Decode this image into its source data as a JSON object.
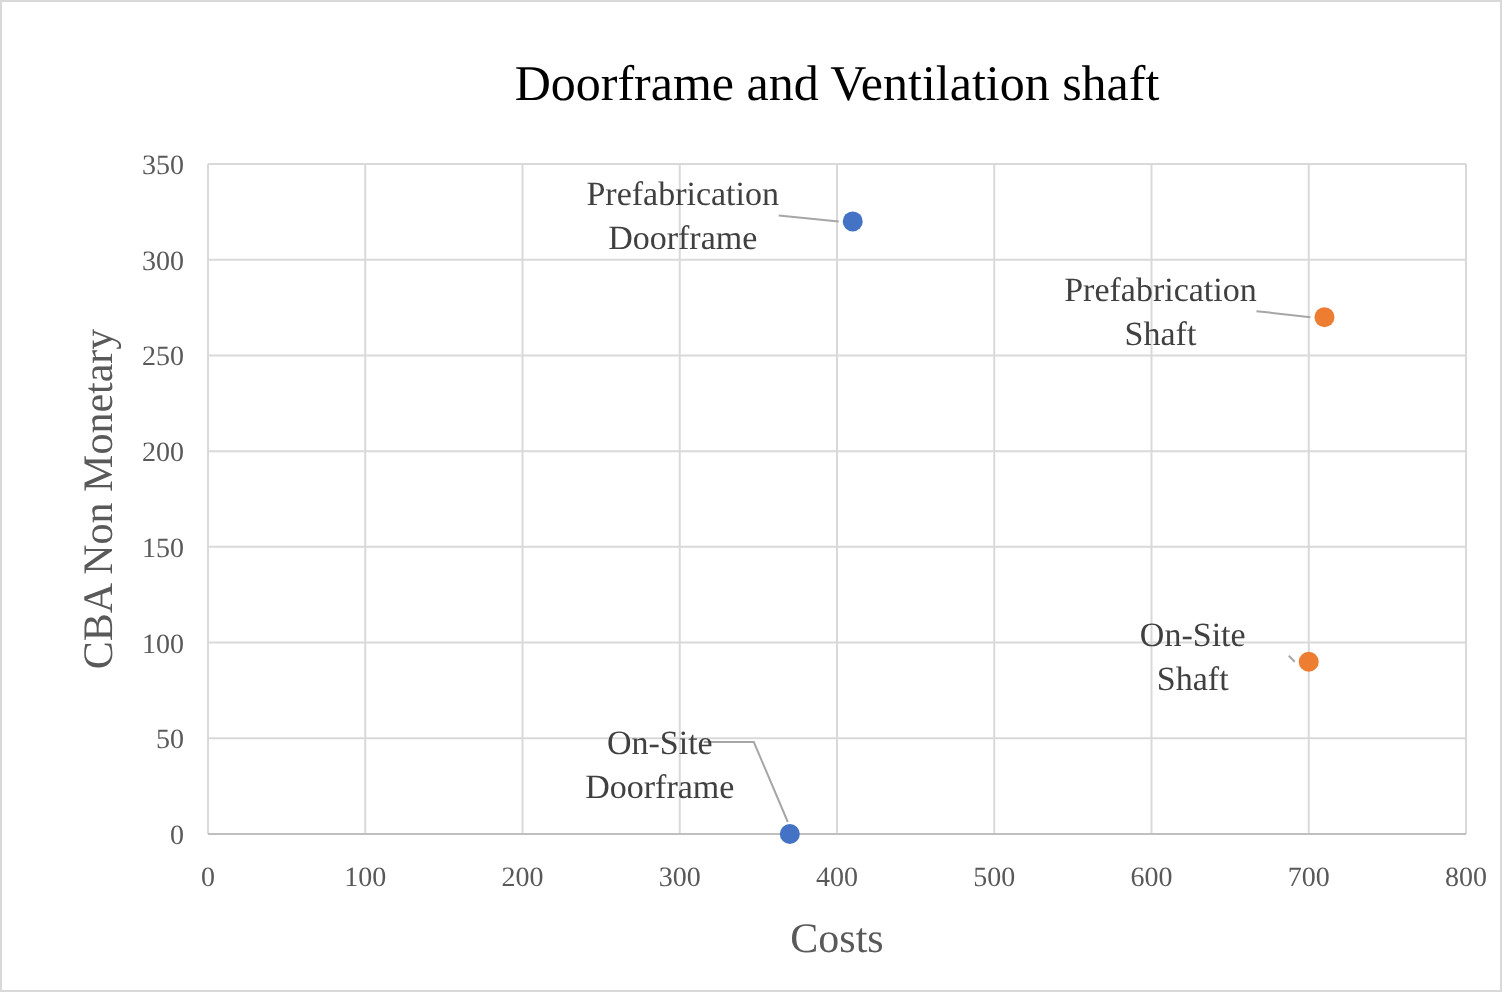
{
  "chart_data": {
    "type": "scatter",
    "title": "Doorframe and Ventilation shaft",
    "xlabel": "Costs",
    "ylabel": "CBA Non Monetary",
    "series": [
      {
        "color": "#4472c4",
        "x": [
          410,
          370
        ],
        "values": [
          320,
          0
        ]
      },
      {
        "color": "#ed7d31",
        "x": [
          710,
          700
        ],
        "values": [
          270,
          90
        ]
      }
    ],
    "xlim": [
      0,
      800
    ],
    "xticks": [
      0,
      100,
      200,
      300,
      400,
      500,
      600,
      700,
      800
    ],
    "ylim": [
      0,
      350
    ],
    "yticks": [
      0,
      50,
      100,
      150,
      200,
      250,
      300,
      350
    ],
    "grid": true,
    "marker": "circle",
    "annotations": [
      {
        "text": "Prefabrication Doorframe",
        "x": 410,
        "y": 320
      },
      {
        "text": "On-Site Doorframe",
        "x": 370,
        "y": 0
      },
      {
        "text": "Prefabrication Shaft",
        "x": 710,
        "y": 270
      },
      {
        "text": "On-Site Shaft",
        "x": 700,
        "y": 90
      }
    ]
  }
}
